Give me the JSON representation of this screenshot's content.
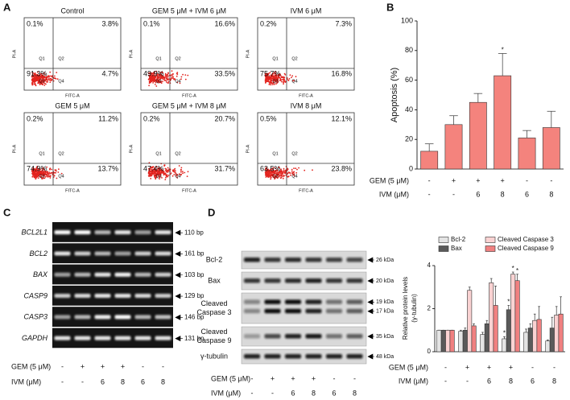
{
  "panel_labels": [
    "A",
    "B",
    "C",
    "D"
  ],
  "flow_cytometry": {
    "y_axis_label": "PI-A",
    "x_axis_label": "FITC-A",
    "quadrant_labels": [
      "Q1",
      "Q2",
      "Q3",
      "Q4"
    ],
    "plots": [
      {
        "title": "Control",
        "q1": "0.1%",
        "q2": "3.8%",
        "q3": "91.3%",
        "q4": "4.7%"
      },
      {
        "title": "GEM 5 μM + IVM 6 μM",
        "q1": "0.1%",
        "q2": "16.6%",
        "q3": "49.9%",
        "q4": "33.5%"
      },
      {
        "title": "IVM 6 μM",
        "q1": "0.2%",
        "q2": "7.3%",
        "q3": "75.7%",
        "q4": "16.8%"
      },
      {
        "title": "GEM 5 μM",
        "q1": "0.2%",
        "q2": "11.2%",
        "q3": "74.9%",
        "q4": "13.7%"
      },
      {
        "title": "GEM 5 μM + IVM 8 μM",
        "q1": "0.2%",
        "q2": "20.7%",
        "q3": "47.4%",
        "q4": "31.7%"
      },
      {
        "title": "IVM 8 μM",
        "q1": "0.5%",
        "q2": "12.1%",
        "q3": "63.5%",
        "q4": "23.8%"
      }
    ]
  },
  "conditions": [
    {
      "label": "GEM (5 μM)",
      "values": [
        "-",
        "+",
        "+",
        "+",
        "-",
        "-"
      ]
    },
    {
      "label": "IVM (μM)",
      "values": [
        "-",
        "-",
        "6",
        "8",
        "6",
        "8"
      ]
    }
  ],
  "rt_pcr": {
    "bands": [
      {
        "gene": "BCL2L1",
        "size": "110 bp"
      },
      {
        "gene": "BCL2",
        "size": "161 bp"
      },
      {
        "gene": "BAX",
        "size": "103 bp"
      },
      {
        "gene": "CASP9",
        "size": "129 bp"
      },
      {
        "gene": "CASP3",
        "size": "146 bp"
      },
      {
        "gene": "GAPDH",
        "size": "131 bp"
      }
    ]
  },
  "western_blot": {
    "rows": [
      {
        "label": [
          "Bcl-2"
        ],
        "sizes": [
          "26 kDa"
        ]
      },
      {
        "label": [
          "Bax"
        ],
        "sizes": [
          "20 kDa"
        ]
      },
      {
        "label": [
          "Cleaved",
          "Caspase 3"
        ],
        "sizes": [
          "19 kDa",
          "17 kDa"
        ]
      },
      {
        "label": [
          "Cleaved",
          "Caspase 9"
        ],
        "sizes": [
          "35 kDa"
        ]
      },
      {
        "label": [
          "γ-tubulin"
        ],
        "sizes": [
          "48 kDa"
        ]
      }
    ]
  },
  "chart_data": [
    {
      "type": "bar",
      "y_label": "Apoptosis (%)",
      "values": [
        12,
        30,
        45,
        63,
        21,
        28
      ],
      "errors": [
        5,
        6,
        6,
        15,
        5,
        11
      ],
      "significance": [
        null,
        null,
        null,
        "*",
        null,
        null
      ],
      "color": "#f4837d",
      "ylim": [
        0,
        100
      ],
      "yticks": [
        0,
        20,
        40,
        60,
        80,
        100
      ]
    },
    {
      "type": "grouped_bar",
      "y_label": [
        "Relative protein levels",
        "(γ-tubulin)"
      ],
      "ylim": [
        0,
        4
      ],
      "yticks": [
        0,
        2,
        4
      ],
      "legend": "top",
      "series": [
        {
          "name": "Bcl-2",
          "color": "#e4e4e4",
          "values": [
            1,
            0.95,
            0.8,
            0.6,
            0.9,
            0.5
          ],
          "errors": [
            0,
            0.05,
            0.1,
            0.1,
            0.15,
            0.05
          ],
          "significance": [
            null,
            null,
            null,
            "*",
            null,
            null
          ]
        },
        {
          "name": "Bax",
          "color": "#5a5a5a",
          "values": [
            1,
            1,
            1.3,
            1.95,
            1.1,
            1.1
          ],
          "errors": [
            0,
            0.1,
            0.15,
            0.2,
            0.2,
            0.5
          ],
          "significance": [
            null,
            null,
            null,
            "*",
            null,
            null
          ]
        },
        {
          "name": "Cleaved Caspase 3",
          "color": "#fad2d2",
          "values": [
            1,
            2.85,
            3.2,
            3.6,
            1.45,
            1.7
          ],
          "errors": [
            0,
            0.15,
            0.2,
            0.1,
            0.3,
            0.4
          ],
          "significance": [
            null,
            null,
            null,
            "*",
            null,
            null
          ]
        },
        {
          "name": "Cleaved Caspase 9",
          "color": "#f08080",
          "values": [
            1,
            1.2,
            2.15,
            3.3,
            1.5,
            1.75
          ],
          "errors": [
            0,
            0.1,
            0.9,
            0.3,
            0.6,
            0.8
          ],
          "significance": [
            null,
            null,
            null,
            "*",
            null,
            null
          ]
        }
      ]
    }
  ]
}
